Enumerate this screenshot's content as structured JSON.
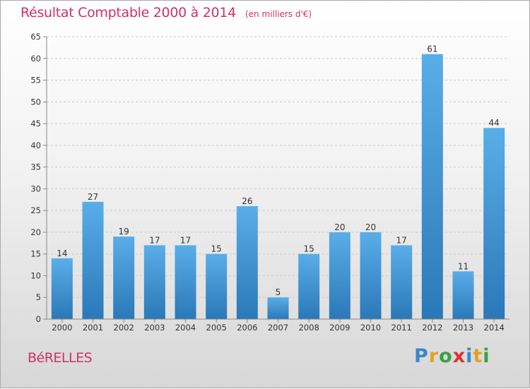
{
  "chart_data": {
    "type": "bar",
    "title": "Résultat Comptable 2000 à 2014",
    "subtitle": "(en milliers d'€)",
    "categories": [
      "2000",
      "2001",
      "2002",
      "2003",
      "2004",
      "2005",
      "2006",
      "2007",
      "2008",
      "2009",
      "2010",
      "2011",
      "2012",
      "2013",
      "2014"
    ],
    "values": [
      14,
      27,
      19,
      17,
      17,
      15,
      26,
      5,
      15,
      20,
      20,
      17,
      61,
      11,
      44
    ],
    "ylim": [
      0,
      65
    ],
    "yticks": [
      0,
      5,
      10,
      15,
      20,
      25,
      30,
      35,
      40,
      45,
      50,
      55,
      60,
      65
    ],
    "grid": true,
    "bar_color_top": "#5aaee8",
    "bar_color_bottom": "#2a78b8"
  },
  "location": "BéRELLES",
  "logo": {
    "letters": [
      "P",
      "r",
      "o",
      "x",
      "i",
      "t",
      "i"
    ],
    "colors": [
      "#3a86c8",
      "#e8a020",
      "#3aa040",
      "#e03030",
      "#3a86c8",
      "#e8a020",
      "#3aa040"
    ]
  },
  "colors": {
    "accent": "#cc3366",
    "grid": "#cccccc",
    "axis": "#888888"
  }
}
